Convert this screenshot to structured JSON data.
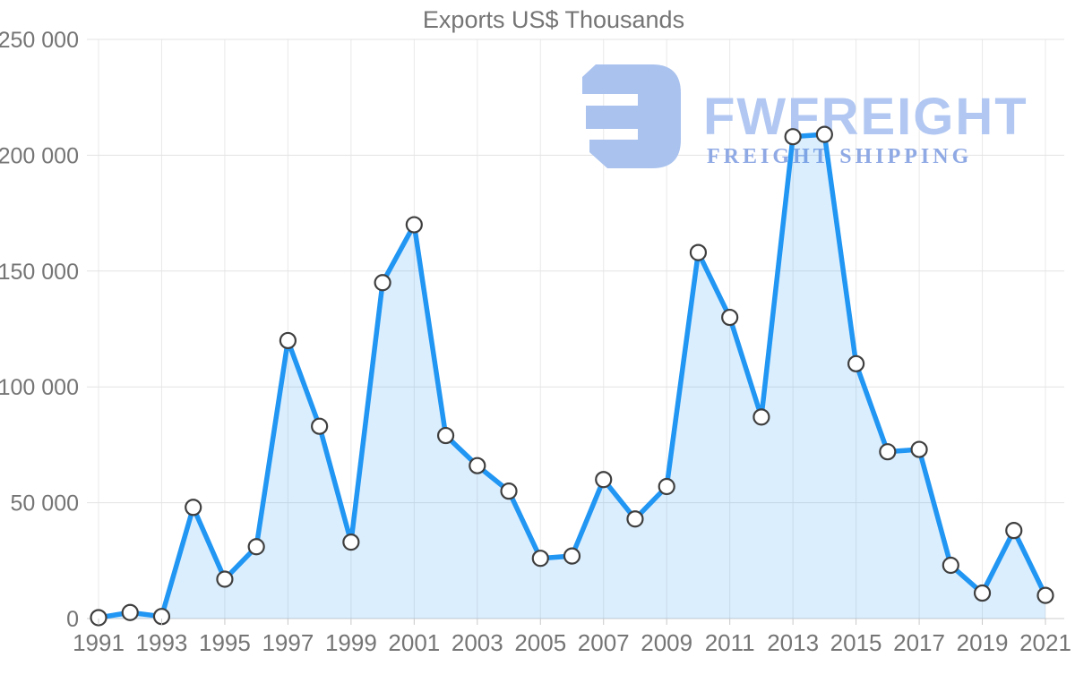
{
  "chart_data": {
    "type": "area",
    "title": "Exports US$ Thousands",
    "x": [
      1991,
      1992,
      1993,
      1994,
      1995,
      1996,
      1997,
      1998,
      1999,
      2000,
      2001,
      2002,
      2003,
      2004,
      2005,
      2006,
      2007,
      2008,
      2009,
      2010,
      2011,
      2012,
      2013,
      2014,
      2015,
      2016,
      2017,
      2018,
      2019,
      2020,
      2021
    ],
    "values": [
      400,
      2600,
      900,
      48000,
      17000,
      31000,
      120000,
      83000,
      33000,
      145000,
      170000,
      79000,
      66000,
      55000,
      26000,
      27000,
      60000,
      43000,
      57000,
      158000,
      130000,
      87000,
      208000,
      209000,
      110000,
      72000,
      73000,
      23000,
      11000,
      38000,
      10000
    ],
    "xlabel": "",
    "ylabel": "",
    "ylim": [
      0,
      250000
    ],
    "ytick_step": 50000,
    "ytick_labels": [
      "0",
      "50 000",
      "100 000",
      "150 000",
      "200 000",
      "250 000"
    ],
    "xtick_labels": [
      "1991",
      "1993",
      "1995",
      "1997",
      "1999",
      "2001",
      "2003",
      "2005",
      "2007",
      "2009",
      "2011",
      "2013",
      "2015",
      "2017",
      "2019",
      "2021"
    ],
    "grid": true,
    "legend_position": "none",
    "line_color": "#2196f3",
    "fill_color": "rgba(33,150,243,0.16)",
    "marker_fill": "#ffffff",
    "marker_stroke": "#3f3f3f",
    "grid_color": "#e3e3e3",
    "vgrid_color": "#e9e9e9",
    "baseline_color": "#cccccc",
    "tick_color": "#c9c9c9",
    "axis_text_color": "#757575"
  },
  "watermark": {
    "brand": "FWFREIGHT",
    "tagline": "FREIGHT SHIPPING",
    "logo_icon": "fwfreight-logo-icon",
    "logo_color": "#a9c2ee",
    "brand_color": "#b2c8f2",
    "tagline_color": "#8fa9e4"
  }
}
